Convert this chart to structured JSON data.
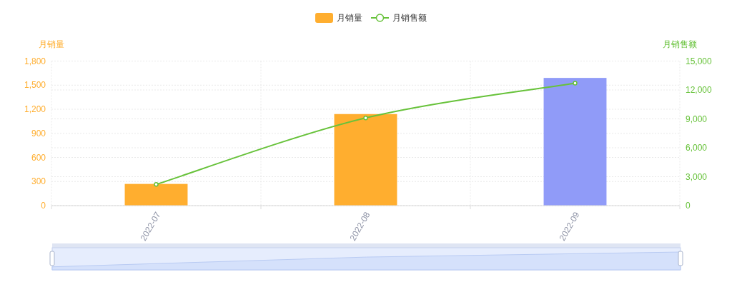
{
  "chart_data": {
    "type": "bar",
    "categories": [
      "2022-07",
      "2022-08",
      "2022-09"
    ],
    "series": [
      {
        "name": "月销量",
        "colors": [
          "#ffae2f",
          "#ffae2f",
          "#909bf8"
        ],
        "values": [
          270,
          1140,
          1590
        ]
      },
      {
        "name": "月销售额",
        "type": "line",
        "axis": "y2",
        "color": "#67c23a",
        "marker": "circle",
        "values": [
          2200,
          9100,
          12700
        ]
      }
    ],
    "ylabel": "月销量",
    "y2label": "月销售额",
    "ylim": [
      0,
      1800
    ],
    "yticks": [
      0,
      300,
      600,
      900,
      {
        "value": 1200,
        "label": "1,200"
      },
      {
        "value": 1500,
        "label": "1,500"
      },
      {
        "value": 1800,
        "label": "1,800"
      }
    ],
    "y2lim": [
      0,
      15000
    ],
    "y2ticks": [
      0,
      {
        "value": 3000,
        "label": "3,000"
      },
      {
        "value": 6000,
        "label": "6,000"
      },
      {
        "value": 9000,
        "label": "9,000"
      },
      {
        "value": 12000,
        "label": "12,000"
      },
      {
        "value": 15000,
        "label": "15,000"
      }
    ],
    "grid": true,
    "legend": "top"
  }
}
